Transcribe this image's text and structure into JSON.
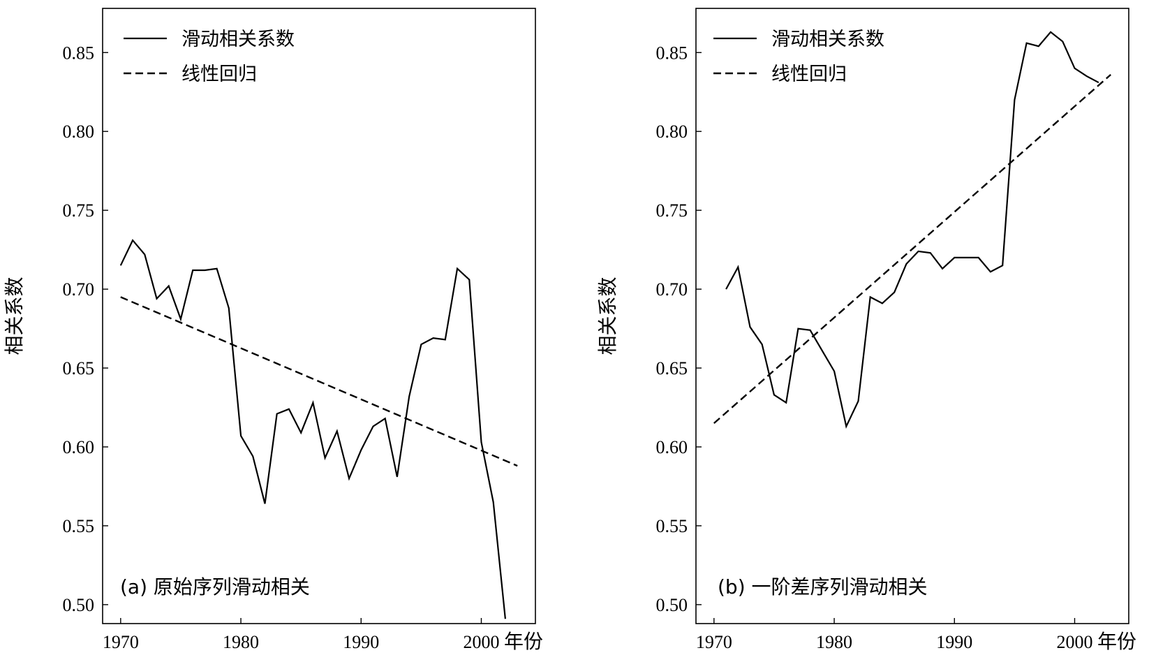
{
  "chart_data": [
    {
      "type": "line",
      "panel_label": "(a) 原始序列滑动相关",
      "xlabel": "年份",
      "ylabel": "相关系数",
      "xlim": [
        1968.5,
        2004.5
      ],
      "ylim": [
        0.488,
        0.878
      ],
      "xticks": [
        1970,
        1980,
        1990,
        2000
      ],
      "yticks": [
        0.5,
        0.55,
        0.6,
        0.65,
        0.7,
        0.75,
        0.8,
        0.85
      ],
      "legend_position": "top-left",
      "series": [
        {
          "name": "滑动相关系数",
          "style": "solid",
          "x": [
            1970,
            1971,
            1972,
            1973,
            1974,
            1975,
            1976,
            1977,
            1978,
            1979,
            1980,
            1981,
            1982,
            1983,
            1984,
            1985,
            1986,
            1987,
            1988,
            1989,
            1990,
            1991,
            1992,
            1993,
            1994,
            1995,
            1996,
            1997,
            1998,
            1999,
            2000,
            2001,
            2002
          ],
          "y": [
            0.715,
            0.731,
            0.722,
            0.694,
            0.702,
            0.681,
            0.712,
            0.712,
            0.713,
            0.688,
            0.607,
            0.594,
            0.564,
            0.621,
            0.624,
            0.609,
            0.628,
            0.593,
            0.61,
            0.58,
            0.598,
            0.613,
            0.618,
            0.581,
            0.632,
            0.665,
            0.669,
            0.668,
            0.713,
            0.706,
            0.603,
            0.565,
            0.491
          ]
        },
        {
          "name": "线性回归",
          "style": "dashed",
          "x": [
            1970,
            2003
          ],
          "y": [
            0.695,
            0.588
          ]
        }
      ]
    },
    {
      "type": "line",
      "panel_label": "(b) 一阶差序列滑动相关",
      "xlabel": "年份",
      "ylabel": "相关系数",
      "xlim": [
        1968.5,
        2004.5
      ],
      "ylim": [
        0.488,
        0.878
      ],
      "xticks": [
        1970,
        1980,
        1990,
        2000
      ],
      "yticks": [
        0.5,
        0.55,
        0.6,
        0.65,
        0.7,
        0.75,
        0.8,
        0.85
      ],
      "legend_position": "top-left",
      "series": [
        {
          "name": "滑动相关系数",
          "style": "solid",
          "x": [
            1971,
            1972,
            1973,
            1974,
            1975,
            1976,
            1977,
            1978,
            1979,
            1980,
            1981,
            1982,
            1983,
            1984,
            1985,
            1986,
            1987,
            1988,
            1989,
            1990,
            1991,
            1992,
            1993,
            1994,
            1995,
            1996,
            1997,
            1998,
            1999,
            2000,
            2001,
            2002
          ],
          "y": [
            0.7,
            0.714,
            0.676,
            0.665,
            0.633,
            0.628,
            0.675,
            0.674,
            0.661,
            0.648,
            0.613,
            0.629,
            0.695,
            0.691,
            0.698,
            0.716,
            0.724,
            0.723,
            0.713,
            0.72,
            0.72,
            0.72,
            0.711,
            0.715,
            0.82,
            0.856,
            0.854,
            0.863,
            0.857,
            0.84,
            0.835,
            0.831
          ]
        },
        {
          "name": "线性回归",
          "style": "dashed",
          "x": [
            1970,
            2003
          ],
          "y": [
            0.615,
            0.836
          ]
        }
      ]
    }
  ]
}
